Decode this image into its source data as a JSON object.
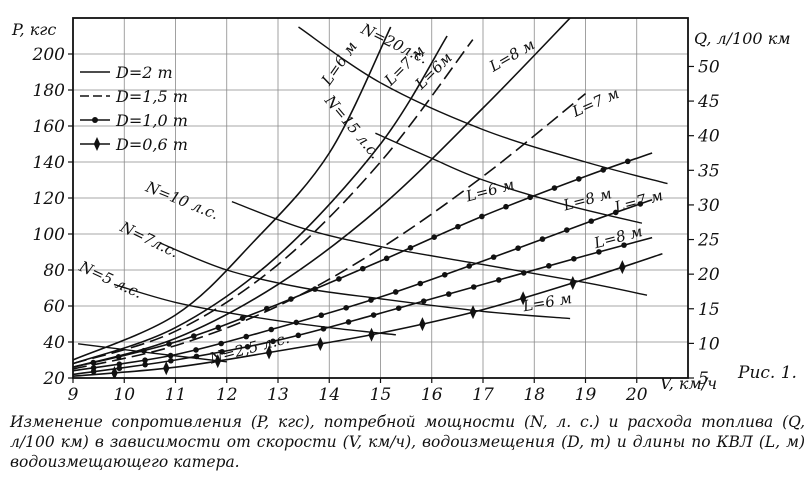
{
  "figure_label": "Рис. 1.",
  "caption": "Изменение сопротивления (P, кгс), потребной мощности (N, л. с.) и расхода топлива (Q, л/100 км) в зависимости от скорости (V, км/ч), водоизмещения (D, т) и длины по КВЛ (L, м) водоизмещающего катера.",
  "chart_data": {
    "type": "line",
    "xlabel": "V, км/ч",
    "ylabel_left": "P, кгс",
    "ylabel_right": "Q, л/100 км",
    "xlim": [
      9,
      21
    ],
    "ylim_left": [
      20,
      220
    ],
    "ylim_right": [
      5,
      57
    ],
    "x_ticks": [
      "9",
      "10",
      "11",
      "12",
      "13",
      "14",
      "15",
      "16",
      "17",
      "18",
      "19",
      "20"
    ],
    "y_ticks_left": [
      "20",
      "40",
      "60",
      "80",
      "100",
      "120",
      "140",
      "160",
      "180",
      "200"
    ],
    "y_ticks_right": [
      "5",
      "10",
      "15",
      "20",
      "25",
      "30",
      "35",
      "40",
      "45",
      "50"
    ],
    "legend": [
      {
        "label": "D=2 т",
        "style": "solid"
      },
      {
        "label": "D=1,5 т",
        "style": "dashed"
      },
      {
        "label": "D=1,0 т",
        "style": "dot"
      },
      {
        "label": "D=0,6 т",
        "style": "diamond"
      }
    ],
    "resistance_curves": [
      {
        "D": "2 т",
        "L": "6 м",
        "style": "solid",
        "points": [
          [
            9,
            30
          ],
          [
            11,
            55
          ],
          [
            12.5,
            95
          ],
          [
            14,
            145
          ],
          [
            15.2,
            215
          ]
        ]
      },
      {
        "D": "2 т",
        "L": "7 м",
        "style": "solid",
        "points": [
          [
            9,
            28
          ],
          [
            11,
            48
          ],
          [
            13,
            88
          ],
          [
            15,
            150
          ],
          [
            16.3,
            210
          ]
        ]
      },
      {
        "D": "2 т",
        "L": "8 м",
        "style": "solid",
        "points": [
          [
            9,
            26
          ],
          [
            11,
            42
          ],
          [
            13,
            72
          ],
          [
            15,
            115
          ],
          [
            17,
            170
          ],
          [
            18.8,
            223
          ]
        ]
      },
      {
        "D": "1,5 т",
        "L": "6 м",
        "style": "dashed",
        "points": [
          [
            9,
            28
          ],
          [
            11,
            46
          ],
          [
            13,
            83
          ],
          [
            15,
            140
          ],
          [
            16.8,
            208
          ]
        ]
      },
      {
        "D": "1,5 т",
        "L": "7 м",
        "style": "dashed",
        "points": [
          [
            9,
            25
          ],
          [
            11,
            38
          ],
          [
            13,
            60
          ],
          [
            15,
            92
          ],
          [
            17,
            132
          ],
          [
            19,
            178
          ]
        ]
      },
      {
        "D": "1,0 т",
        "L": "6 м",
        "style": "dot",
        "points": [
          [
            9,
            26
          ],
          [
            11,
            40
          ],
          [
            13,
            61
          ],
          [
            15,
            85
          ],
          [
            17,
            110
          ],
          [
            19,
            132
          ],
          [
            20.3,
            145
          ]
        ]
      },
      {
        "D": "1,0 т",
        "L": "7 м",
        "style": "dot",
        "points": [
          [
            9,
            24
          ],
          [
            11,
            33
          ],
          [
            13,
            48
          ],
          [
            15,
            65
          ],
          [
            17,
            85
          ],
          [
            19,
            106
          ],
          [
            20.3,
            119
          ]
        ]
      },
      {
        "D": "1,0 т",
        "L": "8 м",
        "style": "dot",
        "points": [
          [
            9,
            22
          ],
          [
            11,
            30
          ],
          [
            13,
            41
          ],
          [
            15,
            56
          ],
          [
            17,
            72
          ],
          [
            19,
            88
          ],
          [
            20.3,
            98
          ]
        ]
      },
      {
        "D": "0,6 т",
        "L": "6 м",
        "style": "diamond",
        "points": [
          [
            9,
            21
          ],
          [
            11,
            26
          ],
          [
            13,
            35
          ],
          [
            15,
            45
          ],
          [
            17,
            58
          ],
          [
            19,
            75
          ],
          [
            20.5,
            89
          ]
        ]
      }
    ],
    "power_curves": [
      {
        "label": "N=20 л.с.",
        "points": [
          [
            13.4,
            215
          ],
          [
            15,
            184
          ],
          [
            17,
            158
          ],
          [
            19,
            140
          ],
          [
            20.6,
            128
          ]
        ]
      },
      {
        "label": "N=15 л.с.",
        "points": [
          [
            14.9,
            156
          ],
          [
            16,
            142
          ],
          [
            17,
            130
          ],
          [
            18.5,
            117
          ],
          [
            20.1,
            106
          ]
        ]
      },
      {
        "label": "N=10 л.с.",
        "points": [
          [
            12.1,
            118
          ],
          [
            13.5,
            103
          ],
          [
            15,
            93
          ],
          [
            17,
            83
          ],
          [
            19,
            73
          ],
          [
            20.2,
            66
          ]
        ]
      },
      {
        "label": "N=7 л.с.",
        "points": [
          [
            10.7,
            95
          ],
          [
            12,
            80
          ],
          [
            13.5,
            70
          ],
          [
            15,
            64
          ],
          [
            17,
            57
          ],
          [
            18.7,
            53
          ]
        ]
      },
      {
        "label": "N=5 л.с.",
        "points": [
          [
            9.8,
            72
          ],
          [
            11,
            62
          ],
          [
            12.5,
            54
          ],
          [
            14,
            48
          ],
          [
            15.3,
            44
          ]
        ]
      },
      {
        "label": "N=2,5 л.с.",
        "points": [
          [
            9.1,
            39
          ],
          [
            10.5,
            34
          ],
          [
            12,
            29
          ]
        ]
      }
    ],
    "series_labels": [
      {
        "text": "N=20л.с.",
        "x": 14.6,
        "y": 212,
        "rot": 26
      },
      {
        "text": "N=15 л.с.",
        "x": 13.9,
        "y": 174,
        "rot": 50
      },
      {
        "text": "N=10 л.с.",
        "x": 10.4,
        "y": 124,
        "rot": 22
      },
      {
        "text": "N=7л.с.",
        "x": 9.9,
        "y": 102,
        "rot": 26
      },
      {
        "text": "N=5 л.с.",
        "x": 9.1,
        "y": 80,
        "rot": 25
      },
      {
        "text": "N=2,5 л.с.",
        "x": 11.7,
        "y": 28,
        "rot": -15
      },
      {
        "text": "L=6 м",
        "x": 14.0,
        "y": 182,
        "rot": -55
      },
      {
        "text": "L=7 м",
        "x": 15.2,
        "y": 182,
        "rot": -45
      },
      {
        "text": "L=6м",
        "x": 15.8,
        "y": 180,
        "rot": -45
      },
      {
        "text": "L=8 м",
        "x": 17.2,
        "y": 190,
        "rot": -30
      },
      {
        "text": "L=7 м",
        "x": 18.8,
        "y": 165,
        "rot": -24
      },
      {
        "text": "L=6 м",
        "x": 16.7,
        "y": 118,
        "rot": -15
      },
      {
        "text": "L=8 м",
        "x": 18.6,
        "y": 113,
        "rot": -15
      },
      {
        "text": "L=7 м",
        "x": 19.6,
        "y": 112,
        "rot": -15
      },
      {
        "text": "L=8 м",
        "x": 19.2,
        "y": 92,
        "rot": -15
      },
      {
        "text": "L=6 м",
        "x": 17.8,
        "y": 57,
        "rot": -10
      }
    ]
  }
}
